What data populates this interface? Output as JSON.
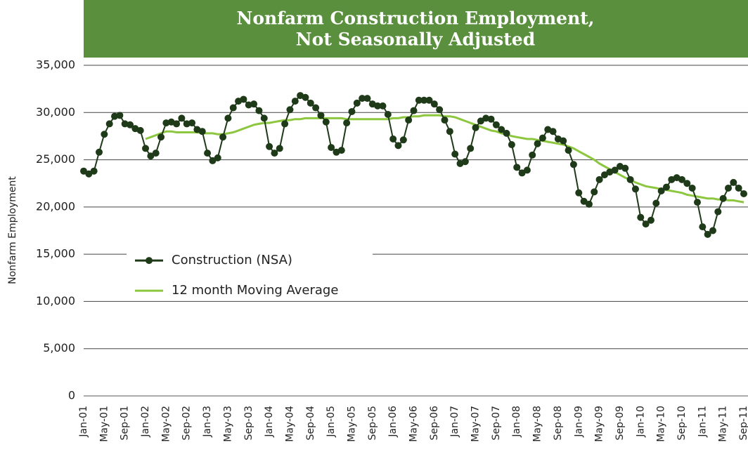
{
  "chart_data": {
    "type": "line",
    "title": [
      "Nonfarm Construction Employment,",
      "Not Seasonally Adjusted"
    ],
    "y_label": "Nonfarm Employment",
    "categories": [
      "Jan-01",
      null,
      null,
      null,
      "May-01",
      null,
      null,
      null,
      "Sep-01",
      null,
      null,
      null,
      "Jan-02",
      null,
      null,
      null,
      "May-02",
      null,
      null,
      null,
      "Sep-02",
      null,
      null,
      null,
      "Jan-03",
      null,
      null,
      null,
      "May-03",
      null,
      null,
      null,
      "Sep-03",
      null,
      null,
      null,
      "Jan-04",
      null,
      null,
      null,
      "May-04",
      null,
      null,
      null,
      "Sep-04",
      null,
      null,
      null,
      "Jan-05",
      null,
      null,
      null,
      "May-05",
      null,
      null,
      null,
      "Sep-05",
      null,
      null,
      null,
      "Jan-06",
      null,
      null,
      null,
      "May-06",
      null,
      null,
      null,
      "Sep-06",
      null,
      null,
      null,
      "Jan-07",
      null,
      null,
      null,
      "May-07",
      null,
      null,
      null,
      "Sep-07",
      null,
      null,
      null,
      "Jan-08",
      null,
      null,
      null,
      "May-08",
      null,
      null,
      null,
      "Sep-08",
      null,
      null,
      null,
      "Jan-09",
      null,
      null,
      null,
      "May-09",
      null,
      null,
      null,
      "Sep-09",
      null,
      null,
      null,
      "Jan-10",
      null,
      null,
      null,
      "May-10",
      null,
      null,
      null,
      "Sep-10",
      null,
      null,
      null,
      "Jan-11",
      null,
      null,
      null,
      "May-11",
      null,
      null,
      null,
      "Sep-11"
    ],
    "series": [
      {
        "name": "Construction (NSA)",
        "color": "#1e3a18",
        "markers": true,
        "values": [
          23800,
          23500,
          23800,
          25800,
          27700,
          28800,
          29600,
          29700,
          28800,
          28700,
          28300,
          28100,
          26200,
          25400,
          25700,
          27400,
          28900,
          29000,
          28800,
          29400,
          28800,
          28900,
          28200,
          28000,
          25700,
          24900,
          25200,
          27400,
          29400,
          30500,
          31200,
          31400,
          30800,
          30900,
          30200,
          29400,
          26400,
          25700,
          26200,
          28800,
          30300,
          31200,
          31800,
          31600,
          31000,
          30500,
          29700,
          29000,
          26300,
          25800,
          26000,
          28900,
          30100,
          31000,
          31500,
          31500,
          30900,
          30700,
          30700,
          29800,
          27200,
          26500,
          27100,
          29200,
          30200,
          31300,
          31300,
          31300,
          30900,
          30300,
          29200,
          28000,
          25600,
          24600,
          24800,
          26200,
          28400,
          29100,
          29400,
          29300,
          28700,
          28200,
          27800,
          26600,
          24200,
          23600,
          23900,
          25500,
          26700,
          27300,
          28200,
          28000,
          27200,
          27000,
          26000,
          24500,
          21500,
          20600,
          20300,
          21600,
          22900,
          23400,
          23700,
          23900,
          24300,
          24100,
          22900,
          21900,
          18900,
          18200,
          18600,
          20400,
          21700,
          22100,
          22900,
          23100,
          22900,
          22500,
          22000,
          20500,
          17900,
          17100,
          17500,
          19500,
          20900,
          22000,
          22600,
          22000,
          21400
        ]
      },
      {
        "name": "12 month Moving Average",
        "color": "#8dc63f",
        "markers": false,
        "values": [
          null,
          null,
          null,
          null,
          null,
          null,
          null,
          null,
          null,
          null,
          null,
          null,
          27200,
          27400,
          27600,
          27800,
          28000,
          28000,
          27900,
          27900,
          27900,
          27900,
          27900,
          27800,
          27800,
          27800,
          27700,
          27700,
          27800,
          27900,
          28100,
          28300,
          28500,
          28700,
          28800,
          28900,
          28900,
          29000,
          29100,
          29200,
          29200,
          29300,
          29300,
          29400,
          29400,
          29400,
          29400,
          29400,
          29400,
          29400,
          29400,
          29300,
          29300,
          29300,
          29300,
          29300,
          29300,
          29300,
          29300,
          29300,
          29400,
          29400,
          29500,
          29500,
          29600,
          29600,
          29700,
          29700,
          29700,
          29700,
          29600,
          29600,
          29500,
          29300,
          29100,
          28900,
          28700,
          28500,
          28300,
          28100,
          28000,
          27800,
          27700,
          27500,
          27400,
          27300,
          27200,
          27200,
          27100,
          27000,
          26900,
          26800,
          26700,
          26600,
          26400,
          26200,
          25900,
          25600,
          25300,
          25000,
          24600,
          24300,
          24000,
          23700,
          23400,
          23100,
          22900,
          22600,
          22400,
          22200,
          22100,
          22000,
          21900,
          21800,
          21700,
          21600,
          21500,
          21300,
          21200,
          21100,
          21000,
          20900,
          20900,
          20800,
          20800,
          20700,
          20700,
          20600,
          20500
        ]
      }
    ],
    "ylim": [
      0,
      35000
    ],
    "yticks": [
      0,
      {
        "value": 5000,
        "label": "5,000"
      },
      {
        "value": 10000,
        "label": "10,000"
      },
      {
        "value": 15000,
        "label": "15,000"
      },
      {
        "value": 20000,
        "label": "20,000"
      },
      {
        "value": 25000,
        "label": "25,000"
      },
      {
        "value": 30000,
        "label": "30,000"
      },
      {
        "value": 35000,
        "label": "35,000"
      }
    ],
    "grid": true,
    "legend": "center-left",
    "title_background": "#5a8f3e"
  }
}
